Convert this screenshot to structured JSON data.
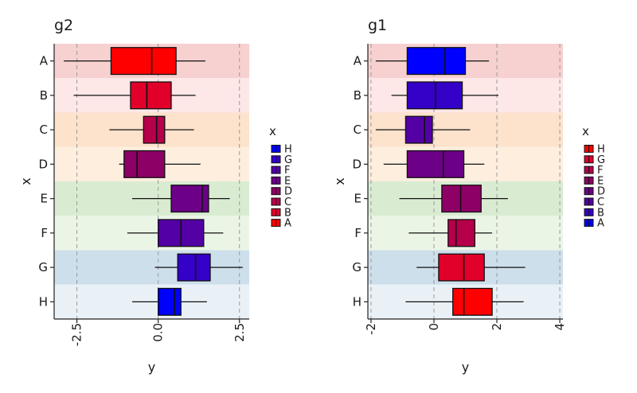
{
  "chart_data": [
    {
      "type": "boxplot",
      "title": "g2",
      "xlabel": "y",
      "ylabel": "x",
      "categories": [
        "A",
        "B",
        "C",
        "D",
        "E",
        "F",
        "G",
        "H"
      ],
      "xlim": [
        -3.2,
        2.8
      ],
      "xticks": [
        -2.5,
        0.0,
        2.5
      ],
      "xtick_labels": [
        "-2.5",
        "0.0",
        "2.5"
      ],
      "grid": "vertical dashed at ticks",
      "boxes": [
        {
          "category": "A",
          "whisker_low": -2.9,
          "q1": -1.45,
          "median": -0.2,
          "q3": 0.55,
          "whisker_high": 1.45,
          "fill": "#ff0000"
        },
        {
          "category": "B",
          "whisker_low": -2.6,
          "q1": -0.85,
          "median": -0.35,
          "q3": 0.4,
          "whisker_high": 1.15,
          "fill": "#e0002a"
        },
        {
          "category": "C",
          "whisker_low": -1.5,
          "q1": -0.45,
          "median": -0.05,
          "q3": 0.2,
          "whisker_high": 1.1,
          "fill": "#b60049"
        },
        {
          "category": "D",
          "whisker_low": -1.2,
          "q1": -1.05,
          "median": -0.65,
          "q3": 0.2,
          "whisker_high": 1.3,
          "fill": "#8d0065"
        },
        {
          "category": "E",
          "whisker_low": -0.8,
          "q1": 0.4,
          "median": 1.35,
          "q3": 1.55,
          "whisker_high": 2.2,
          "fill": "#6c0086"
        },
        {
          "category": "F",
          "whisker_low": -0.95,
          "q1": 0.0,
          "median": 0.7,
          "q3": 1.4,
          "whisker_high": 2.0,
          "fill": "#5300a5"
        },
        {
          "category": "G",
          "whisker_low": -0.1,
          "q1": 0.6,
          "median": 1.15,
          "q3": 1.6,
          "whisker_high": 2.6,
          "fill": "#3500c8"
        },
        {
          "category": "H",
          "whisker_low": -0.8,
          "q1": 0.0,
          "median": 0.5,
          "q3": 0.7,
          "whisker_high": 1.5,
          "fill": "#0000ff"
        }
      ],
      "legend": {
        "title": "x",
        "placement": "right",
        "entries": [
          {
            "label": "H",
            "color": "#0000ff"
          },
          {
            "label": "G",
            "color": "#3500c8"
          },
          {
            "label": "F",
            "color": "#5300a5"
          },
          {
            "label": "E",
            "color": "#6c0086"
          },
          {
            "label": "D",
            "color": "#8d0065"
          },
          {
            "label": "C",
            "color": "#b60049"
          },
          {
            "label": "B",
            "color": "#e0002a"
          },
          {
            "label": "A",
            "color": "#ff0000"
          }
        ]
      }
    },
    {
      "type": "boxplot",
      "title": "g1",
      "xlabel": "y",
      "ylabel": "x",
      "categories": [
        "A",
        "B",
        "C",
        "D",
        "E",
        "F",
        "G",
        "H"
      ],
      "xlim": [
        -2.1,
        4.1
      ],
      "xticks": [
        -2,
        0,
        2,
        4
      ],
      "xtick_labels": [
        "-2",
        "0",
        "2",
        "4"
      ],
      "grid": "vertical dashed at ticks",
      "boxes": [
        {
          "category": "A",
          "whisker_low": -1.85,
          "q1": -0.85,
          "median": 0.35,
          "q3": 1.0,
          "whisker_high": 1.75,
          "fill": "#0000ff"
        },
        {
          "category": "B",
          "whisker_low": -1.35,
          "q1": -0.85,
          "median": 0.05,
          "q3": 0.9,
          "whisker_high": 2.05,
          "fill": "#3500c8"
        },
        {
          "category": "C",
          "whisker_low": -1.85,
          "q1": -0.9,
          "median": -0.3,
          "q3": -0.05,
          "whisker_high": 1.15,
          "fill": "#5300a5"
        },
        {
          "category": "D",
          "whisker_low": -1.6,
          "q1": -0.85,
          "median": 0.3,
          "q3": 0.95,
          "whisker_high": 1.6,
          "fill": "#6c0086"
        },
        {
          "category": "E",
          "whisker_low": -1.1,
          "q1": 0.25,
          "median": 0.85,
          "q3": 1.5,
          "whisker_high": 2.35,
          "fill": "#8d0065"
        },
        {
          "category": "F",
          "whisker_low": -0.8,
          "q1": 0.45,
          "median": 0.7,
          "q3": 1.3,
          "whisker_high": 1.85,
          "fill": "#b60049"
        },
        {
          "category": "G",
          "whisker_low": -0.55,
          "q1": 0.15,
          "median": 0.95,
          "q3": 1.6,
          "whisker_high": 2.9,
          "fill": "#e0002a"
        },
        {
          "category": "H",
          "whisker_low": -0.9,
          "q1": 0.6,
          "median": 0.95,
          "q3": 1.85,
          "whisker_high": 2.85,
          "fill": "#ff0000"
        }
      ],
      "legend": {
        "title": "x",
        "placement": "right",
        "entries": [
          {
            "label": "H",
            "color": "#ff0000"
          },
          {
            "label": "G",
            "color": "#e0002a"
          },
          {
            "label": "F",
            "color": "#b60049"
          },
          {
            "label": "E",
            "color": "#8d0065"
          },
          {
            "label": "D",
            "color": "#6c0086"
          },
          {
            "label": "C",
            "color": "#5300a5"
          },
          {
            "label": "B",
            "color": "#3500c8"
          },
          {
            "label": "A",
            "color": "#0000ff"
          }
        ]
      }
    }
  ],
  "band_colors": [
    "#f7d0d0",
    "#fde7e7",
    "#fde2cc",
    "#fdeede",
    "#d9ecd2",
    "#ebf5e6",
    "#cedfec",
    "#e9f1f7"
  ]
}
